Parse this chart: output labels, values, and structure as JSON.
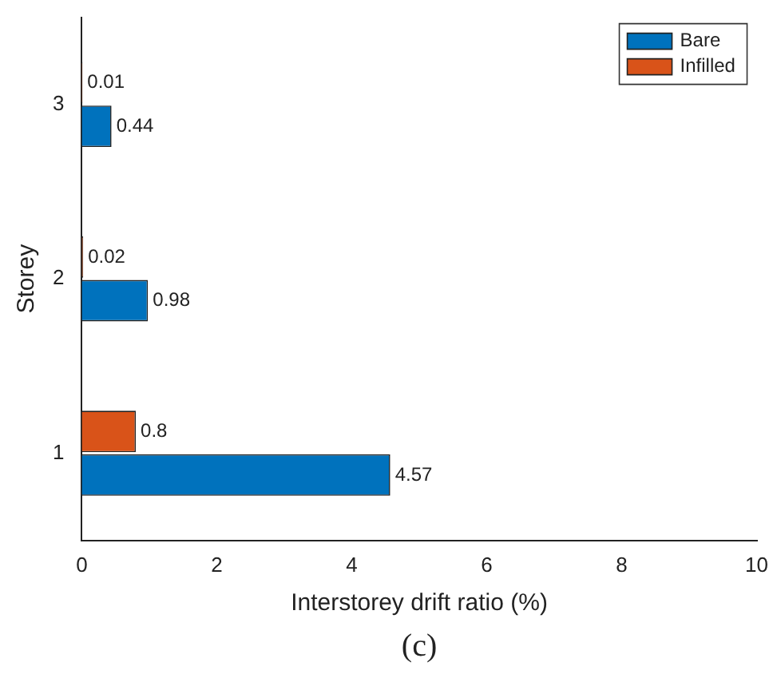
{
  "chart_data": {
    "type": "bar",
    "orientation": "horizontal",
    "categories": [
      "3",
      "2",
      "1"
    ],
    "series": [
      {
        "name": "Bare",
        "color": "#0072bd",
        "values": [
          0.44,
          0.98,
          4.57
        ]
      },
      {
        "name": "Infilled",
        "color": "#d95319",
        "values": [
          0.01,
          0.02,
          0.8
        ]
      }
    ],
    "xlim": [
      0,
      10
    ],
    "xticks": [
      0,
      2,
      4,
      6,
      8,
      10
    ],
    "xlabel": "Interstorey drift ratio (%)",
    "ylabel": "Storey",
    "data_labels": true,
    "legend": "top right",
    "grid": false,
    "annotations": [
      "(c)"
    ]
  }
}
